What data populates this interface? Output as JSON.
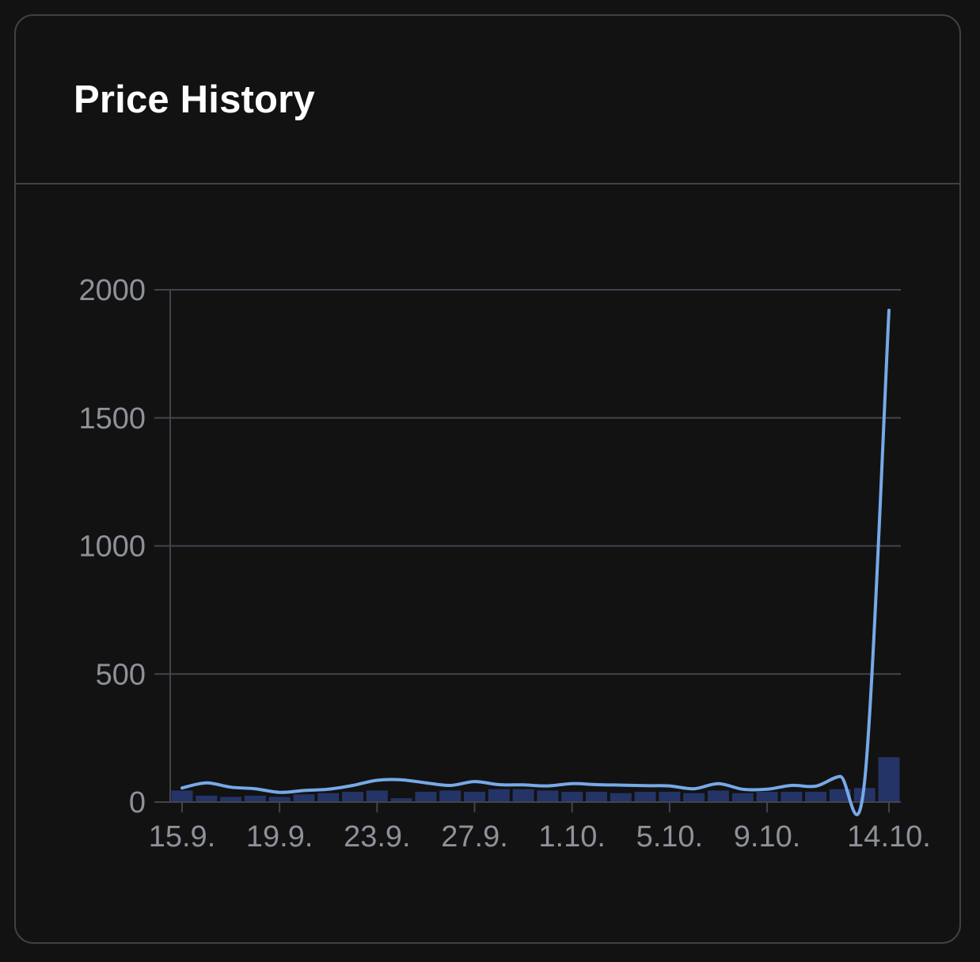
{
  "card": {
    "title": "Price History"
  },
  "colors": {
    "background": "#121212",
    "border": "#3f4148",
    "grid": "#42444d",
    "line": "#77a9e8",
    "bar": "#253466",
    "tick_text": "#8e9199",
    "title_text": "#ffffff"
  },
  "chart_data": {
    "type": "bar+line",
    "title": "Price History",
    "xlabel": "",
    "ylabel": "",
    "ylim": [
      0,
      2000
    ],
    "yticks": [
      0,
      500,
      1000,
      1500,
      2000
    ],
    "xtick_labels": [
      "15.9.",
      "19.9.",
      "23.9.",
      "27.9.",
      "1.10.",
      "5.10.",
      "9.10.",
      "14.10."
    ],
    "xtick_indices": [
      0,
      4,
      8,
      12,
      16,
      20,
      24,
      29
    ],
    "dates": [
      "15.9.",
      "16.9.",
      "17.9.",
      "18.9.",
      "19.9.",
      "20.9.",
      "21.9.",
      "22.9.",
      "23.9.",
      "24.9.",
      "25.9.",
      "26.9.",
      "27.9.",
      "28.9.",
      "29.9.",
      "30.9.",
      "1.10.",
      "2.10.",
      "3.10.",
      "4.10.",
      "5.10.",
      "6.10.",
      "7.10.",
      "8.10.",
      "9.10.",
      "10.10.",
      "11.10.",
      "12.10.",
      "13.10.",
      "14.10."
    ],
    "grid": true,
    "series": [
      {
        "kind": "line",
        "values": [
          55,
          75,
          58,
          52,
          38,
          45,
          50,
          65,
          85,
          87,
          75,
          65,
          80,
          68,
          67,
          63,
          72,
          68,
          66,
          64,
          63,
          52,
          72,
          50,
          50,
          65,
          62,
          100,
          80,
          1920
        ]
      },
      {
        "kind": "bar",
        "values": [
          45,
          25,
          20,
          25,
          20,
          30,
          35,
          40,
          45,
          15,
          40,
          45,
          40,
          50,
          50,
          45,
          40,
          40,
          35,
          40,
          40,
          35,
          45,
          35,
          40,
          40,
          40,
          50,
          55,
          175
        ]
      }
    ]
  }
}
